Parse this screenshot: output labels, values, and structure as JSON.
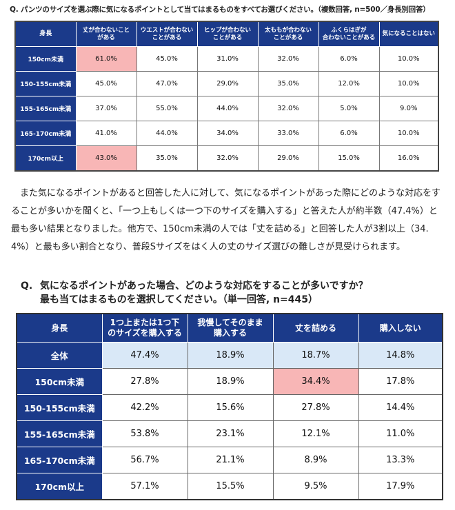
{
  "q1": {
    "title": "Q. パンツのサイズを選ぶ際に気になるポイントとして当てはまるものをすべてお選びください。（複数回答, n=500／身長別回答）",
    "headers": [
      {
        "l1": "身長",
        "l2": ""
      },
      {
        "l1": "丈が合わないこと",
        "l2": "がある"
      },
      {
        "l1": "ウエストが合わない",
        "l2": "ことがある"
      },
      {
        "l1": "ヒップが合わない",
        "l2": "ことがある"
      },
      {
        "l1": "太ももが合わない",
        "l2": "ことがある"
      },
      {
        "l1": "ふくらはぎが",
        "l2": "合わないことがある"
      },
      {
        "l1": "気になることはない",
        "l2": ""
      }
    ],
    "rows": [
      {
        "label": "150cm未満",
        "values": [
          "61.0%",
          "45.0%",
          "31.0%",
          "32.0%",
          "6.0%",
          "10.0%"
        ]
      },
      {
        "label": "150-155cm未満",
        "values": [
          "45.0%",
          "47.0%",
          "29.0%",
          "35.0%",
          "12.0%",
          "10.0%"
        ]
      },
      {
        "label": "155-165cm未満",
        "values": [
          "37.0%",
          "55.0%",
          "44.0%",
          "32.0%",
          "5.0%",
          "9.0%"
        ]
      },
      {
        "label": "165-170cm未満",
        "values": [
          "41.0%",
          "44.0%",
          "34.0%",
          "33.0%",
          "6.0%",
          "10.0%"
        ]
      },
      {
        "label": "170cm以上",
        "values": [
          "43.0%",
          "35.0%",
          "32.0%",
          "29.0%",
          "15.0%",
          "16.0%"
        ]
      }
    ]
  },
  "paragraph": "　また気になるポイントがあると回答した人に対して、気になるポイントがあった際にどのような対応をすることが多いかを聞くと、「一つ上もしくは一つ下のサイズを購入する」と答えた人が約半数（47.4%）と最も多い結果となりました。他方で、150cm未満の人では「丈を詰める」と回答した人が3割以上（34.4%）と最も多い割合となり、普段Sサイズをはく人の丈のサイズ選びの難しさが見受けられます。",
  "q2": {
    "q_mark": "Q.",
    "title_line1": "気になるポイントがあった場合、どのような対応をすることが多いですか？",
    "title_line2": "最も当てはまるものを選択してください。（単一回答, n=445）",
    "headers": [
      {
        "l1": "身長",
        "l2": ""
      },
      {
        "l1": "1つ上または1つ下",
        "l2": "のサイズを購入する"
      },
      {
        "l1": "我慢してそのまま",
        "l2": "購入する"
      },
      {
        "l1": "丈を詰める",
        "l2": ""
      },
      {
        "l1": "購入しない",
        "l2": ""
      }
    ],
    "rows": [
      {
        "label": "全体",
        "values": [
          "47.4%",
          "18.9%",
          "18.7%",
          "14.8%"
        ]
      },
      {
        "label": "150cm未満",
        "values": [
          "27.8%",
          "18.9%",
          "34.4%",
          "17.8%"
        ]
      },
      {
        "label": "150-155cm未満",
        "values": [
          "42.2%",
          "15.6%",
          "27.8%",
          "14.4%"
        ]
      },
      {
        "label": "155-165cm未満",
        "values": [
          "53.8%",
          "23.1%",
          "12.1%",
          "11.0%"
        ]
      },
      {
        "label": "165-170cm未満",
        "values": [
          "56.7%",
          "21.1%",
          "8.9%",
          "13.3%"
        ]
      },
      {
        "label": "170cm以上",
        "values": [
          "57.1%",
          "15.5%",
          "9.5%",
          "17.9%"
        ]
      }
    ]
  },
  "colors": {
    "header_bg": "#1b3a8a",
    "highlight": "#f8b6b6",
    "total_row": "#d9e8f7"
  }
}
